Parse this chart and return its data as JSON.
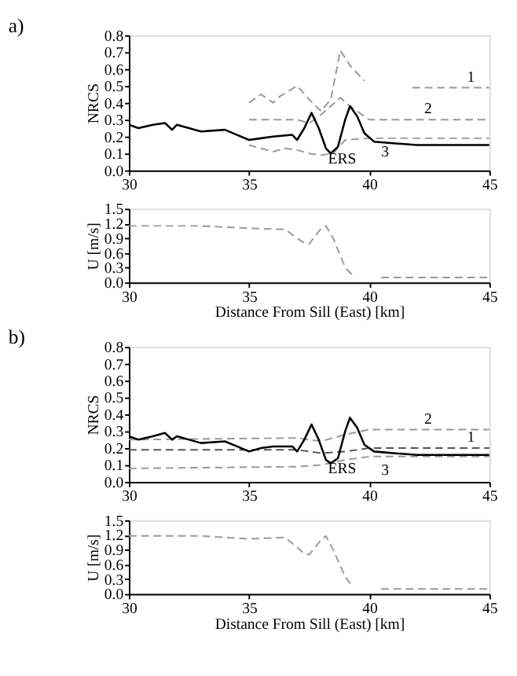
{
  "chart_data": [
    {
      "type": "line",
      "title": "a)",
      "ylabel": "NRCS",
      "xlim": [
        30,
        45
      ],
      "xticks": [
        30,
        35,
        40,
        45
      ],
      "ylim": [
        0,
        0.8
      ],
      "yticks": [
        {
          "value": 0,
          "label": "0.0"
        },
        {
          "value": 0.1,
          "label": "0.1"
        },
        {
          "value": 0.2,
          "label": "0.2"
        },
        {
          "value": 0.3,
          "label": "0.3"
        },
        {
          "value": 0.4,
          "label": "0.4"
        },
        {
          "value": 0.5,
          "label": "0.5"
        },
        {
          "value": 0.6,
          "label": "0.6"
        },
        {
          "value": 0.7,
          "label": "0.7"
        },
        {
          "value": 0.8,
          "label": "0.8"
        }
      ],
      "grid": false,
      "marker": "none",
      "series": [
        {
          "name": "1",
          "color": "#999999",
          "line_style": "dashed",
          "x": [
            35,
            35.5,
            36,
            36.3,
            37,
            37.5,
            38,
            38.4,
            38.8,
            39.2,
            39.8,
            40.5,
            41.8,
            45
          ],
          "values": [
            0.4,
            0.45,
            0.4,
            0.44,
            0.5,
            0.42,
            0.35,
            0.42,
            0.71,
            0.62,
            0.53,
            null,
            0.49,
            0.49
          ]
        },
        {
          "name": "2",
          "color": "#999999",
          "line_style": "dashed",
          "x": [
            35,
            36,
            37,
            37.5,
            38,
            38.8,
            39.2,
            40,
            45
          ],
          "values": [
            0.3,
            0.3,
            0.3,
            0.28,
            0.33,
            0.43,
            0.38,
            0.3,
            0.3
          ]
        },
        {
          "name": "3",
          "color": "#999999",
          "line_style": "dashed",
          "x": [
            35,
            35.5,
            36,
            36.5,
            37,
            37.5,
            38,
            38.5,
            39,
            40,
            45
          ],
          "values": [
            0.15,
            0.13,
            0.11,
            0.13,
            0.12,
            0.1,
            0.09,
            0.1,
            0.18,
            0.19,
            0.19
          ]
        },
        {
          "name": "ERS",
          "color": "#000000",
          "line_style": "solid",
          "x": [
            30,
            30.4,
            31,
            31.5,
            31.8,
            32,
            33,
            34,
            34.5,
            35,
            35.5,
            36,
            36.8,
            37,
            37.3,
            37.6,
            37.9,
            38.2,
            38.4,
            38.7,
            39,
            39.2,
            39.5,
            39.8,
            40.2,
            41,
            42,
            43,
            44,
            45
          ],
          "values": [
            0.27,
            0.25,
            0.27,
            0.28,
            0.24,
            0.27,
            0.23,
            0.24,
            0.21,
            0.18,
            0.19,
            0.2,
            0.21,
            0.18,
            0.25,
            0.34,
            0.25,
            0.13,
            0.1,
            0.14,
            0.3,
            0.38,
            0.32,
            0.22,
            0.17,
            0.16,
            0.15,
            0.15,
            0.15,
            0.15
          ]
        }
      ]
    },
    {
      "type": "line",
      "xlabel": "Distance From Sill (East) [km]",
      "ylabel": "U [m/s]",
      "xlim": [
        30,
        45
      ],
      "xticks": [
        30,
        35,
        40,
        45
      ],
      "ylim": [
        0,
        1.5
      ],
      "yticks": [
        {
          "value": 0,
          "label": "0.0"
        },
        {
          "value": 0.3,
          "label": "0.3"
        },
        {
          "value": 0.6,
          "label": "0.6"
        },
        {
          "value": 0.9,
          "label": "0.9"
        },
        {
          "value": 1.2,
          "label": "1.2"
        },
        {
          "value": 1.5,
          "label": "1.5"
        }
      ],
      "grid": false,
      "marker": "none",
      "series": [
        {
          "color": "#999999",
          "line_style": "dashed",
          "x": [
            30,
            33,
            35,
            36.5,
            37,
            37.3,
            37.5,
            38,
            38.2,
            38.5,
            39,
            39.3,
            40,
            40.5,
            45
          ],
          "values": [
            1.15,
            1.15,
            1.1,
            1.08,
            0.9,
            0.8,
            0.78,
            1.1,
            1.15,
            0.9,
            0.3,
            0.15,
            null,
            0.1,
            0.1
          ]
        }
      ]
    },
    {
      "type": "line",
      "title": "b)",
      "ylabel": "NRCS",
      "xlim": [
        30,
        45
      ],
      "xticks": [
        30,
        35,
        40,
        45
      ],
      "ylim": [
        0,
        0.8
      ],
      "yticks": [
        {
          "value": 0,
          "label": "0.0"
        },
        {
          "value": 0.1,
          "label": "0.1"
        },
        {
          "value": 0.2,
          "label": "0.2"
        },
        {
          "value": 0.3,
          "label": "0.3"
        },
        {
          "value": 0.4,
          "label": "0.4"
        },
        {
          "value": 0.5,
          "label": "0.5"
        },
        {
          "value": 0.6,
          "label": "0.6"
        },
        {
          "value": 0.7,
          "label": "0.7"
        },
        {
          "value": 0.8,
          "label": "0.8"
        }
      ],
      "grid": false,
      "marker": "none",
      "series": [
        {
          "name": "1",
          "color": "#555555",
          "line_style": "dashed",
          "x": [
            30,
            37,
            38,
            39,
            40,
            45
          ],
          "values": [
            0.19,
            0.19,
            0.17,
            0.18,
            0.2,
            0.2
          ]
        },
        {
          "name": "2",
          "color": "#999999",
          "line_style": "dashed",
          "x": [
            30,
            37,
            38,
            39,
            40,
            45
          ],
          "values": [
            0.25,
            0.26,
            0.24,
            0.28,
            0.31,
            0.31
          ]
        },
        {
          "name": "3",
          "color": "#999999",
          "line_style": "dashed",
          "x": [
            30,
            37,
            38,
            39,
            40,
            45
          ],
          "values": [
            0.08,
            0.09,
            0.1,
            0.13,
            0.15,
            0.15
          ]
        },
        {
          "name": "ERS",
          "color": "#000000",
          "line_style": "solid",
          "x": [
            30,
            30.4,
            31,
            31.5,
            31.8,
            32,
            33,
            34,
            34.5,
            35,
            35.5,
            36,
            36.8,
            37,
            37.3,
            37.6,
            37.9,
            38.2,
            38.4,
            38.7,
            39,
            39.2,
            39.5,
            39.8,
            40.2,
            41,
            42,
            43,
            44,
            45
          ],
          "values": [
            0.27,
            0.25,
            0.27,
            0.29,
            0.25,
            0.27,
            0.23,
            0.24,
            0.21,
            0.18,
            0.2,
            0.21,
            0.21,
            0.18,
            0.25,
            0.34,
            0.25,
            0.13,
            0.11,
            0.14,
            0.3,
            0.38,
            0.32,
            0.22,
            0.18,
            0.17,
            0.16,
            0.16,
            0.16,
            0.16
          ]
        }
      ]
    },
    {
      "type": "line",
      "xlabel": "Distance From Sill (East) [km]",
      "ylabel": "U [m/s]",
      "xlim": [
        30,
        45
      ],
      "xticks": [
        30,
        35,
        40,
        45
      ],
      "ylim": [
        0,
        1.5
      ],
      "yticks": [
        {
          "value": 0,
          "label": "0.0"
        },
        {
          "value": 0.3,
          "label": "0.3"
        },
        {
          "value": 0.6,
          "label": "0.6"
        },
        {
          "value": 0.9,
          "label": "0.9"
        },
        {
          "value": 1.2,
          "label": "1.2"
        },
        {
          "value": 1.5,
          "label": "1.5"
        }
      ],
      "grid": false,
      "marker": "none",
      "series": [
        {
          "color": "#999999",
          "line_style": "dashed",
          "x": [
            30,
            33,
            35,
            36.5,
            37,
            37.3,
            37.5,
            38,
            38.2,
            38.5,
            39,
            39.3,
            40,
            40.5,
            45
          ],
          "values": [
            1.18,
            1.18,
            1.12,
            1.15,
            0.95,
            0.82,
            0.8,
            1.1,
            1.18,
            0.9,
            0.35,
            0.15,
            null,
            0.1,
            0.1
          ]
        }
      ]
    }
  ]
}
